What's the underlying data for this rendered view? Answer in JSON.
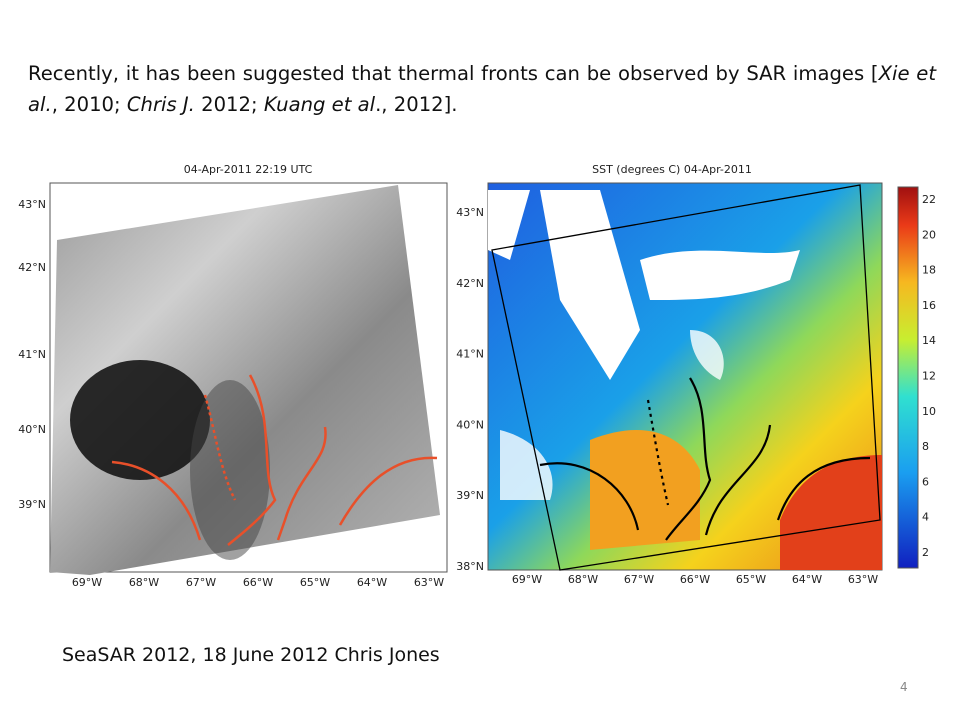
{
  "paragraph": [
    {
      "text": "Recently, it has been suggested that thermal fronts can be observed by SAR images [",
      "italic": false
    },
    {
      "text": "Xie et al.",
      "italic": true
    },
    {
      "text": ", 2010; ",
      "italic": false
    },
    {
      "text": "Chris J.",
      "italic": true
    },
    {
      "text": " 2012; ",
      "italic": false
    },
    {
      "text": "Kuang et al",
      "italic": true
    },
    {
      "text": "., 2012].",
      "italic": false
    }
  ],
  "left_figure": {
    "title": "04-Apr-2011 22:19 UTC",
    "lat_labels": [
      "43°N",
      "42°N",
      "41°N",
      "40°N",
      "39°N"
    ],
    "lon_labels": [
      "69°W",
      "68°W",
      "67°W",
      "66°W",
      "65°W",
      "64°W",
      "63°W"
    ]
  },
  "right_figure": {
    "title": "SST (degrees C) 04-Apr-2011",
    "lat_labels": [
      "43°N",
      "42°N",
      "41°N",
      "40°N",
      "39°N",
      "38°N"
    ],
    "lon_labels": [
      "69°W",
      "68°W",
      "67°W",
      "66°W",
      "65°W",
      "64°W",
      "63°W"
    ],
    "colorbar_ticks": [
      22,
      20,
      18,
      16,
      14,
      12,
      10,
      8,
      6,
      4,
      2
    ]
  },
  "caption": "SeaSAR 2012, 18 June 2012 Chris Jones",
  "page_number": "4"
}
